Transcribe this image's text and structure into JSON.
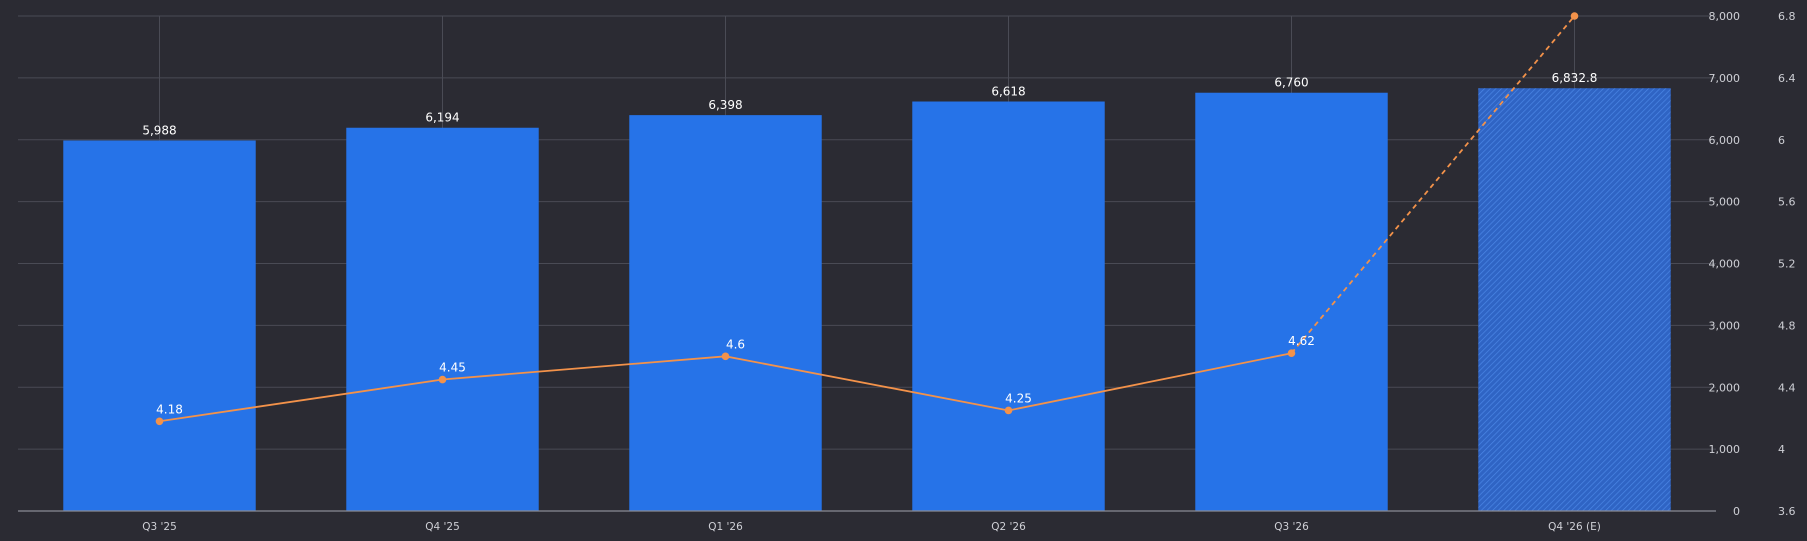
{
  "chart_data": {
    "type": "bar",
    "categories": [
      "Q3 '25",
      "Q4 '25",
      "Q1 '26",
      "Q2 '26",
      "Q3 '26",
      "Q4 '26 (E)"
    ],
    "estimate_category_index": 5,
    "series": [
      {
        "axis": "left",
        "type": "bar",
        "values": [
          5988,
          6194,
          6398,
          6618,
          6760,
          6832.8
        ],
        "labels": [
          "5,988",
          "6,194",
          "6,398",
          "6,618",
          "6,760",
          "6,832.8"
        ],
        "color": "#2673e8"
      },
      {
        "axis": "right",
        "type": "line",
        "values": [
          4.18,
          4.45,
          4.6,
          4.25,
          4.62,
          6.8
        ],
        "labels": [
          "4.18",
          "4.45",
          "4.6",
          "4.25",
          "4.62",
          ""
        ],
        "color": "#f3924a"
      }
    ],
    "y_left": {
      "ylim": [
        0,
        8000
      ],
      "ticks": [
        "0",
        "1,000",
        "2,000",
        "3,000",
        "4,000",
        "5,000",
        "6,000",
        "7,000",
        "8,000"
      ]
    },
    "y_right": {
      "ylim": [
        3.6,
        6.8
      ],
      "ticks": [
        "3.6",
        "4",
        "4.4",
        "4.8",
        "5.2",
        "5.6",
        "6",
        "6.4",
        "6.8"
      ]
    },
    "grid": true,
    "colors": {
      "background": "#2b2b33",
      "bar": "#2673e8",
      "line": "#f3924a",
      "grid": "#4a4b55",
      "text": "#cfd0d6"
    }
  }
}
